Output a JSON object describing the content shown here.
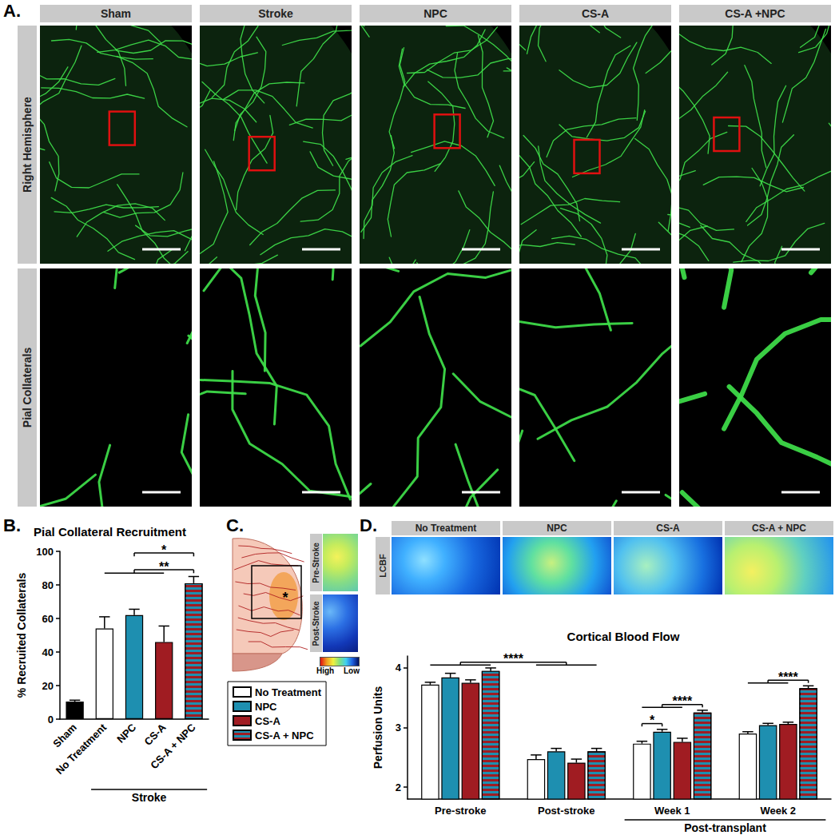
{
  "chart_data": [
    {
      "panel": "B.",
      "type": "bar",
      "title": "Pial Collateral Recruitment",
      "y_label": "% Recruited Collaterals",
      "categories": [
        "Sham",
        "No Treatment",
        "NPC",
        "CS-A",
        "CS-A + NPC"
      ],
      "values": [
        10.5,
        54,
        62,
        46,
        81
      ],
      "errors": [
        0.8,
        7,
        3.5,
        9.5,
        4
      ],
      "colors": [
        "#000000",
        "#ffffff",
        "#1e8fb0",
        "#a01c22",
        [
          "#a01c22",
          "#1e8fb0"
        ]
      ],
      "ylim": [
        0,
        100
      ],
      "yticks": [
        0,
        20,
        40,
        60,
        80,
        100
      ],
      "grid": false,
      "x_groups": [
        {
          "label": "Stroke",
          "from": 1,
          "to": 4
        }
      ],
      "annotations": [
        {
          "label": "**",
          "left": [
            1,
            3
          ],
          "right": [
            4,
            4
          ]
        },
        {
          "label": "*",
          "left": [
            2,
            2
          ],
          "right": [
            4,
            4
          ]
        }
      ]
    },
    {
      "panel": "D.",
      "type": "bar",
      "title": "Cortical Blood Flow",
      "y_label": "Perfusion Units",
      "categories": [
        "Pre-stroke",
        "Post-stroke",
        "Week 1",
        "Week 2"
      ],
      "series": [
        {
          "name": "No Treatment",
          "color": "#ffffff",
          "values": [
            3.72,
            2.47,
            2.73,
            2.9
          ],
          "errors": [
            0.04,
            0.07,
            0.04,
            0.03
          ]
        },
        {
          "name": "NPC",
          "color": "#1e8fb0",
          "values": [
            3.84,
            2.6,
            2.93,
            3.04
          ],
          "errors": [
            0.07,
            0.05,
            0.04,
            0.03
          ]
        },
        {
          "name": "CS-A",
          "color": "#a01c22",
          "values": [
            3.75,
            2.41,
            2.76,
            3.06
          ],
          "errors": [
            0.05,
            0.06,
            0.06,
            0.03
          ]
        },
        {
          "name": "CS-A + NPC",
          "color": [
            "#a01c22",
            "#1e8fb0"
          ],
          "values": [
            3.95,
            2.6,
            3.25,
            3.66
          ],
          "errors": [
            0.05,
            0.05,
            0.04,
            0.04
          ]
        }
      ],
      "ylim": [
        1.8,
        4.2
      ],
      "yticks": [
        2,
        3,
        4
      ],
      "grid": false,
      "legend": "left",
      "x_groups": [
        {
          "label": "Post-transplant",
          "from": 2,
          "to": 3
        }
      ],
      "annotations": [
        {
          "label": "****",
          "left": [
            0,
            0,
            3
          ],
          "right": [
            1,
            0,
            3
          ]
        },
        {
          "label": "*",
          "left": [
            2,
            0,
            0
          ],
          "right": [
            2,
            1,
            1
          ]
        },
        {
          "label": "****",
          "left": [
            2,
            0,
            2
          ],
          "right": [
            2,
            3,
            3
          ]
        },
        {
          "label": "****",
          "left": [
            3,
            0,
            2
          ],
          "right": [
            3,
            3,
            3
          ]
        }
      ],
      "image_row_label": "LCBF"
    }
  ],
  "figure": {
    "panel_a": {
      "label": "A.",
      "columns": [
        "Sham",
        "Stroke",
        "NPC",
        "CS-A",
        "CS-A +NPC"
      ],
      "rows": [
        "Right Hemisphere",
        "Pial Collaterals"
      ]
    },
    "panel_c": {
      "label": "C.",
      "mark": "*",
      "images": [
        "Pre-Stroke",
        "Post-Stroke"
      ],
      "colorbar": [
        "High",
        "Low"
      ]
    }
  }
}
